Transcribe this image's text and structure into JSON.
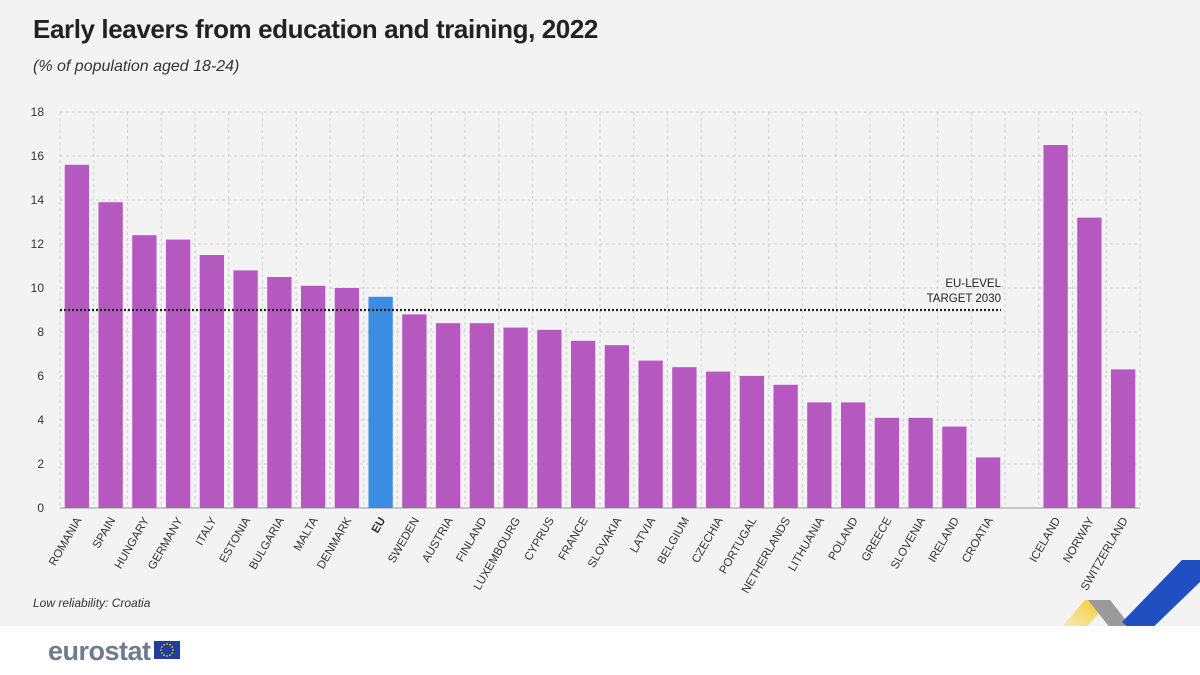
{
  "title": "Early leavers from education and training, 2022",
  "subtitle": "(% of population aged 18-24)",
  "note": "Low reliability: Croatia",
  "brand": "eurostat",
  "icons": {
    "flag": "eu-flag-icon",
    "decoration": "chevron-ribbon-decoration"
  },
  "colors": {
    "bar": "#b558c0",
    "highlight": "#3a8de0",
    "reference_line": "#222222",
    "ribbon_yellow": "#f5c518",
    "ribbon_grey": "#9a9a9a",
    "ribbon_blue": "#1f4fc0",
    "brand": "#6d7d8f"
  },
  "chart_data": {
    "type": "bar",
    "title": "Early leavers from education and training, 2022",
    "subtitle": "(% of population aged 18-24)",
    "ylim": [
      0,
      18
    ],
    "yticks": [
      0,
      2,
      4,
      6,
      8,
      10,
      12,
      14,
      16,
      18
    ],
    "grid": true,
    "categories": [
      "ROMANIA",
      "SPAIN",
      "HUNGARY",
      "GERMANY",
      "ITALY",
      "ESTONIA",
      "BULGARIA",
      "MALTA",
      "DENMARK",
      "EU",
      "SWEDEN",
      "AUSTRIA",
      "FINLAND",
      "LUXEMBOURG",
      "CYPRUS",
      "FRANCE",
      "SLOVAKIA",
      "LATVIA",
      "BELGIUM",
      "CZECHIA",
      "PORTUGAL",
      "NETHERLANDS",
      "LITHUANIA",
      "POLAND",
      "GREECE",
      "SLOVENIA",
      "IRELAND",
      "CROATIA",
      "",
      "ICELAND",
      "NORWAY",
      "SWITZERLAND"
    ],
    "values": [
      15.6,
      13.9,
      12.4,
      12.2,
      11.5,
      10.8,
      10.5,
      10.1,
      10.0,
      9.6,
      8.8,
      8.4,
      8.4,
      8.2,
      8.1,
      7.6,
      7.4,
      6.7,
      6.4,
      6.2,
      6.0,
      5.6,
      4.8,
      4.8,
      4.1,
      4.1,
      3.7,
      2.3,
      null,
      16.5,
      13.2,
      6.3
    ],
    "highlight": "EU",
    "reference_line": {
      "value": 9,
      "label_lines": [
        "EU-LEVEL",
        "TARGET 2030"
      ]
    }
  }
}
